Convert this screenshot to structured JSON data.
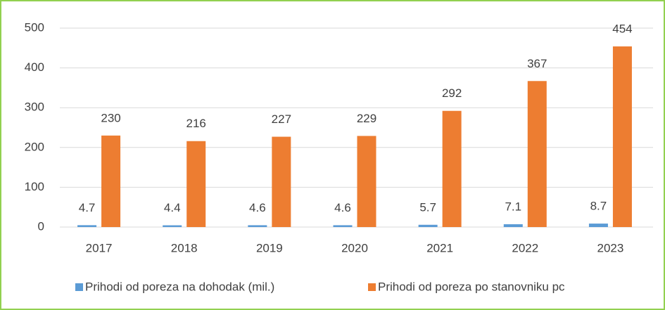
{
  "chart_data": {
    "type": "bar",
    "categories": [
      "2017",
      "2018",
      "2019",
      "2020",
      "2021",
      "2022",
      "2023"
    ],
    "series": [
      {
        "name": "Prihodi od poreza na dohodak (mil.)",
        "color": "#5b9bd5",
        "values": [
          4.7,
          4.4,
          4.6,
          4.6,
          5.7,
          7.1,
          8.7
        ]
      },
      {
        "name": "Prihodi od poreza po stanovniku pc",
        "color": "#ed7d31",
        "values": [
          230,
          216,
          227,
          229,
          292,
          367,
          454
        ]
      }
    ],
    "ylim": [
      0,
      500
    ],
    "yticks": [
      0,
      100,
      200,
      300,
      400,
      500
    ],
    "grid": true,
    "legend": "bottom"
  }
}
